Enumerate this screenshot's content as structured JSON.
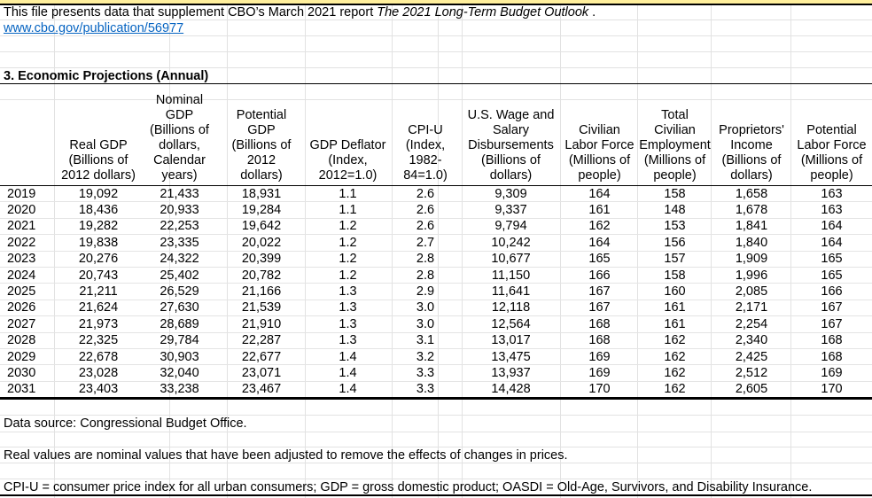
{
  "intro_note": {
    "prefix": "This file presents data that supplement CBO’s March 2021 report ",
    "report_title": "The 2021 Long-Term Budget Outlook",
    "suffix": " ."
  },
  "link": "www.cbo.gov/publication/56977",
  "section_title": "3. Economic Projections (Annual)",
  "table": {
    "columns": [
      {
        "key": "year",
        "header": ""
      },
      {
        "key": "real_gdp",
        "header": "Real GDP\n(Billions of\n2012 dollars)"
      },
      {
        "key": "nominal_gdp",
        "header": "Nominal GDP\n(Billions of\ndollars,\nCalendar\nyears)"
      },
      {
        "key": "potential_gdp",
        "header": "Potential\nGDP\n(Billions of\n2012\ndollars)"
      },
      {
        "key": "gdp_deflator",
        "header": "GDP Deflator\n(Index,\n2012=1.0)"
      },
      {
        "key": "cpi_u",
        "header": "CPI-U\n(Index,\n1982-\n84=1.0)"
      },
      {
        "key": "us_wage_salary_disbursements",
        "header": "U.S. Wage and\nSalary\nDisbursements\n(Billions of\ndollars)"
      },
      {
        "key": "civilian_labor_force",
        "header": "Civilian\nLabor Force\n(Millions of\npeople)"
      },
      {
        "key": "total_civilian_employment",
        "header": "Total\nCivilian\nEmployment\n(Millions of\npeople)"
      },
      {
        "key": "proprietors_income",
        "header": "Proprietors'\nIncome\n(Billions of\ndollars)"
      },
      {
        "key": "potential_labor_force",
        "header": "Potential\nLabor Force\n(Millions of\npeople)"
      }
    ],
    "rows": [
      [
        "2019",
        "19,092",
        "21,433",
        "18,931",
        "1.1",
        "2.6",
        "9,309",
        "164",
        "158",
        "1,658",
        "163"
      ],
      [
        "2020",
        "18,436",
        "20,933",
        "19,284",
        "1.1",
        "2.6",
        "9,337",
        "161",
        "148",
        "1,678",
        "163"
      ],
      [
        "2021",
        "19,282",
        "22,253",
        "19,642",
        "1.2",
        "2.6",
        "9,794",
        "162",
        "153",
        "1,841",
        "164"
      ],
      [
        "2022",
        "19,838",
        "23,335",
        "20,022",
        "1.2",
        "2.7",
        "10,242",
        "164",
        "156",
        "1,840",
        "164"
      ],
      [
        "2023",
        "20,276",
        "24,322",
        "20,399",
        "1.2",
        "2.8",
        "10,677",
        "165",
        "157",
        "1,909",
        "165"
      ],
      [
        "2024",
        "20,743",
        "25,402",
        "20,782",
        "1.2",
        "2.8",
        "11,150",
        "166",
        "158",
        "1,996",
        "165"
      ],
      [
        "2025",
        "21,211",
        "26,529",
        "21,166",
        "1.3",
        "2.9",
        "11,641",
        "167",
        "160",
        "2,085",
        "166"
      ],
      [
        "2026",
        "21,624",
        "27,630",
        "21,539",
        "1.3",
        "3.0",
        "12,118",
        "167",
        "161",
        "2,171",
        "167"
      ],
      [
        "2027",
        "21,973",
        "28,689",
        "21,910",
        "1.3",
        "3.0",
        "12,564",
        "168",
        "161",
        "2,254",
        "167"
      ],
      [
        "2028",
        "22,325",
        "29,784",
        "22,287",
        "1.3",
        "3.1",
        "13,017",
        "168",
        "162",
        "2,340",
        "168"
      ],
      [
        "2029",
        "22,678",
        "30,903",
        "22,677",
        "1.4",
        "3.2",
        "13,475",
        "169",
        "162",
        "2,425",
        "168"
      ],
      [
        "2030",
        "23,028",
        "32,040",
        "23,071",
        "1.4",
        "3.3",
        "13,937",
        "169",
        "162",
        "2,512",
        "169"
      ],
      [
        "2031",
        "23,403",
        "33,238",
        "23,467",
        "1.4",
        "3.3",
        "14,428",
        "170",
        "162",
        "2,605",
        "170"
      ]
    ]
  },
  "footnotes": [
    "Data source: Congressional Budget Office.",
    "Real values are nominal values that have been adjusted to remove the effects of changes in prices.",
    "CPI-U = consumer price index for all urban consumers; GDP = gross domestic product; OASDI = Old-Age, Survivors, and Disability Insurance."
  ],
  "colors": {
    "link_blue": "#0563C1",
    "highlight_yellow": "#FFEF9C",
    "rule_black": "#000000",
    "gridline_gray": "#E2E2E2"
  }
}
